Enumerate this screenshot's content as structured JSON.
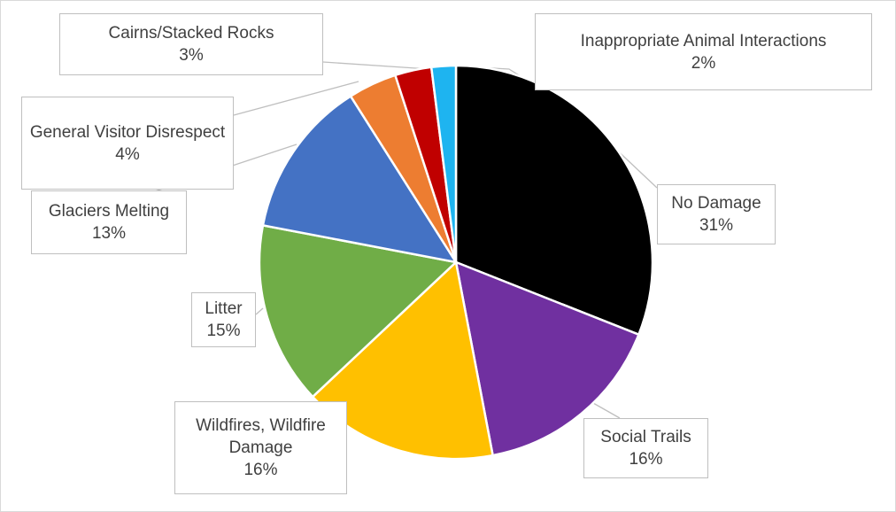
{
  "chart_data": {
    "type": "pie",
    "title": "",
    "start_angle_deg": 0,
    "direction": "clockwise",
    "slices": [
      {
        "label": "No Damage",
        "value_label": "31%",
        "value": 31,
        "color": "#000000"
      },
      {
        "label": "Social Trails",
        "value_label": "16%",
        "value": 16,
        "color": "#7030a0"
      },
      {
        "label": "Wildfires, Wildfire Damage",
        "value_label": "16%",
        "value": 16,
        "color": "#ffc000"
      },
      {
        "label": "Litter",
        "value_label": "15%",
        "value": 15,
        "color": "#70ad47"
      },
      {
        "label": "Glaciers Melting",
        "value_label": "13%",
        "value": 13,
        "color": "#4472c4"
      },
      {
        "label": "General Visitor Disrespect",
        "value_label": "4%",
        "value": 4,
        "color": "#ed7d31"
      },
      {
        "label": "Cairns/Stacked Rocks",
        "value_label": "3%",
        "value": 3,
        "color": "#c00000"
      },
      {
        "label": "Inappropriate Animal Interactions",
        "value_label": "2%",
        "value": 2,
        "color": "#1eb4f0"
      }
    ],
    "legend": "none",
    "data_labels": "callouts"
  }
}
